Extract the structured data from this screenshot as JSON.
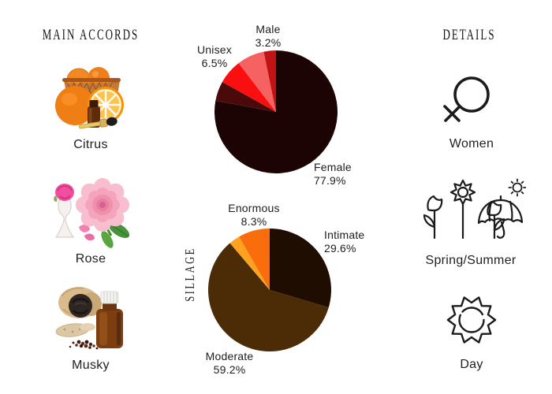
{
  "page": {
    "background": "#ffffff",
    "text_color": "#1f1f1f"
  },
  "left_panel": {
    "heading": "MAIN ACCORDS",
    "accords": [
      {
        "name": "citrus",
        "label": "Citrus",
        "icon": "citrus-oranges-basket-photo"
      },
      {
        "name": "rose",
        "label": "Rose",
        "icon": "rose-bloom-vase-photo"
      },
      {
        "name": "musky",
        "label": "Musky",
        "icon": "musk-pod-bottle-photo"
      }
    ]
  },
  "right_panel": {
    "heading": "DETAILS",
    "details": [
      {
        "name": "gender",
        "label": "Women",
        "icon": "female-symbol-icon"
      },
      {
        "name": "season",
        "label": "Spring/Summer",
        "icon": "flowers-umbrella-sun-icon"
      },
      {
        "name": "time",
        "label": "Day",
        "icon": "sun-icon"
      }
    ]
  },
  "chart_data": [
    {
      "type": "pie",
      "name": "gender-votes",
      "start_angle_deg": -90,
      "direction": "clockwise",
      "slices": [
        {
          "label": "Female",
          "pct_text": "77.9%",
          "value": 77.9,
          "color": "#1d0404"
        },
        {
          "label": "",
          "value": 5.2,
          "color": "#4a0a0a"
        },
        {
          "label": "Unisex",
          "pct_text": "6.5%",
          "value": 6.5,
          "color": "#f90f0f"
        },
        {
          "label": "",
          "value": 7.2,
          "color": "#f66161"
        },
        {
          "label": "Male",
          "pct_text": "3.2%",
          "value": 3.2,
          "color": "#c11313"
        }
      ]
    },
    {
      "type": "pie",
      "name": "sillage-votes",
      "axis_label": "SILLAGE",
      "start_angle_deg": -90,
      "direction": "clockwise",
      "slices": [
        {
          "label": "Intimate",
          "pct_text": "29.6%",
          "value": 29.6,
          "color": "#200d02"
        },
        {
          "label": "Moderate",
          "pct_text": "59.2%",
          "value": 59.2,
          "color": "#4c2b07"
        },
        {
          "label": "",
          "value": 2.9,
          "color": "#ffa21f"
        },
        {
          "label": "Enormous",
          "pct_text": "8.3%",
          "value": 8.3,
          "color": "#f96d0d"
        }
      ]
    }
  ]
}
